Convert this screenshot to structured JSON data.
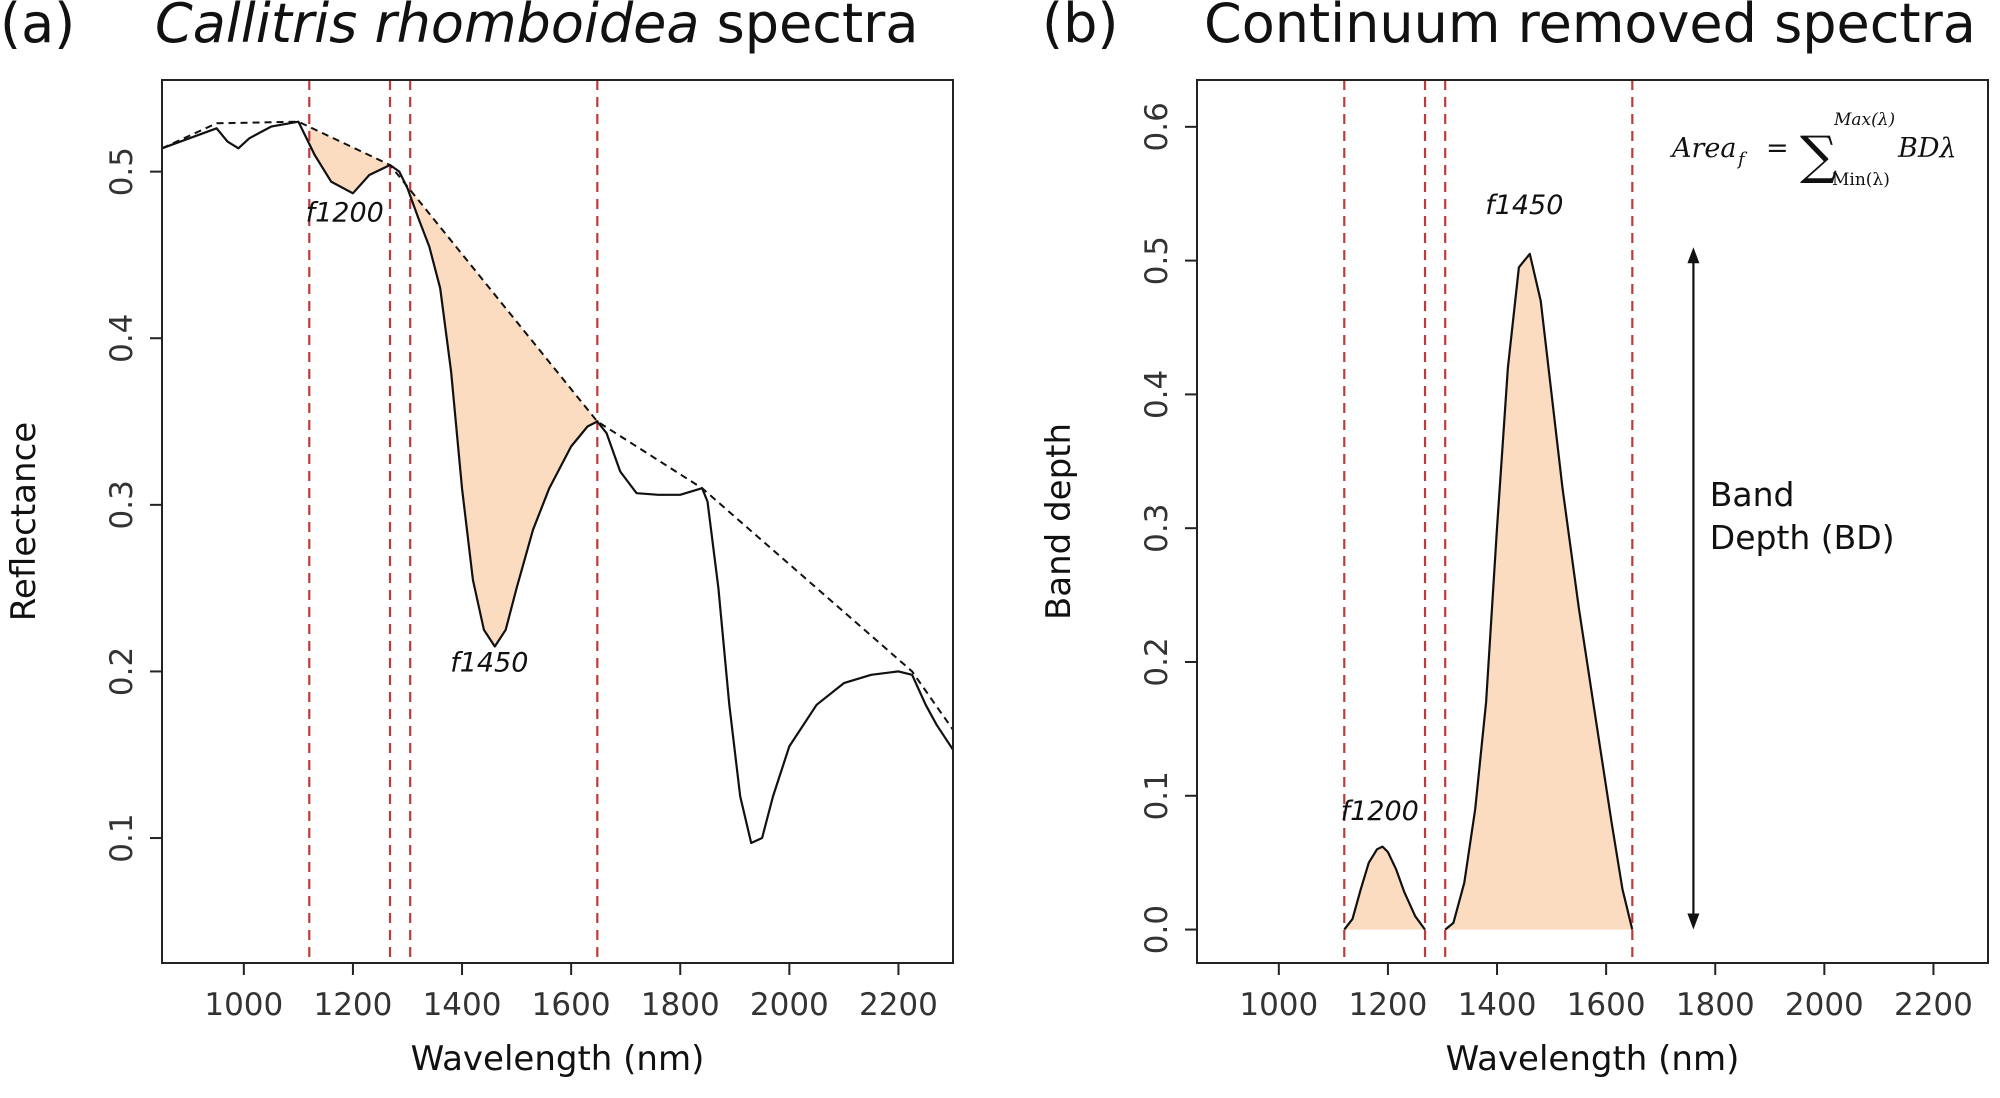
{
  "colors": {
    "fill": "#fcdcc0",
    "line": "#111111",
    "vline": "#c0393b",
    "box": "#222222"
  },
  "chart_data": [
    {
      "panel": "(a)",
      "type": "line",
      "title_italic": "Callitris rhomboidea",
      "title_rest": " spectra",
      "xlabel": "Wavelength (nm)",
      "ylabel": "Reflectance",
      "xlim": [
        850,
        2300
      ],
      "ylim": [
        0.025,
        0.555
      ],
      "xticks": [
        1000,
        1200,
        1400,
        1600,
        1800,
        2000,
        2200
      ],
      "yticks": [
        0.1,
        0.2,
        0.3,
        0.4,
        0.5
      ],
      "ytick_labels": [
        "0.1",
        "0.2",
        "0.3",
        "0.4",
        "0.5"
      ],
      "vlines": [
        1120,
        1268,
        1305,
        1648
      ],
      "series": [
        {
          "style": "solid",
          "x": [
            850,
            900,
            950,
            970,
            990,
            1010,
            1050,
            1100,
            1130,
            1160,
            1200,
            1230,
            1268,
            1285,
            1300,
            1320,
            1340,
            1360,
            1380,
            1400,
            1420,
            1440,
            1460,
            1480,
            1500,
            1530,
            1560,
            1600,
            1630,
            1648,
            1665,
            1690,
            1720,
            1760,
            1800,
            1840,
            1850,
            1870,
            1890,
            1910,
            1930,
            1950,
            1970,
            2000,
            2050,
            2100,
            2150,
            2200,
            2225,
            2250,
            2270,
            2300
          ],
          "y": [
            0.514,
            0.52,
            0.526,
            0.518,
            0.514,
            0.52,
            0.527,
            0.53,
            0.51,
            0.494,
            0.487,
            0.498,
            0.504,
            0.5,
            0.49,
            0.472,
            0.455,
            0.43,
            0.38,
            0.31,
            0.255,
            0.225,
            0.215,
            0.225,
            0.25,
            0.285,
            0.31,
            0.335,
            0.347,
            0.35,
            0.343,
            0.32,
            0.307,
            0.306,
            0.306,
            0.31,
            0.302,
            0.25,
            0.18,
            0.125,
            0.097,
            0.1,
            0.125,
            0.155,
            0.18,
            0.193,
            0.198,
            0.2,
            0.198,
            0.18,
            0.168,
            0.153
          ]
        },
        {
          "style": "dashed",
          "x": [
            850,
            950,
            1100,
            1268,
            1648,
            1840,
            2225,
            2300
          ],
          "y": [
            0.514,
            0.529,
            0.53,
            0.504,
            0.35,
            0.31,
            0.2,
            0.165
          ]
        }
      ],
      "filled_features": [
        {
          "label": "f1200",
          "x_range": [
            1120,
            1268
          ],
          "label_pos": [
            1185,
            0.47
          ]
        },
        {
          "label": "f1450",
          "x_range": [
            1305,
            1648
          ],
          "label_pos": [
            1450,
            0.2
          ]
        }
      ]
    },
    {
      "panel": "(b)",
      "type": "area",
      "title": "Continuum removed spectra",
      "xlabel": "Wavelength (nm)",
      "ylabel": "Band depth",
      "xlim": [
        850,
        2300
      ],
      "ylim": [
        -0.025,
        0.635
      ],
      "xticks": [
        1000,
        1200,
        1400,
        1600,
        1800,
        2000,
        2200
      ],
      "yticks": [
        0.0,
        0.1,
        0.2,
        0.3,
        0.4,
        0.5,
        0.6
      ],
      "ytick_labels": [
        "0.0",
        "0.1",
        "0.2",
        "0.3",
        "0.4",
        "0.5",
        "0.6"
      ],
      "vlines": [
        1120,
        1268,
        1305,
        1648
      ],
      "series": [
        {
          "name": "f1200",
          "x": [
            1120,
            1135,
            1150,
            1165,
            1180,
            1190,
            1200,
            1215,
            1230,
            1250,
            1268
          ],
          "y": [
            0.0,
            0.008,
            0.03,
            0.05,
            0.06,
            0.062,
            0.058,
            0.045,
            0.028,
            0.01,
            0.0
          ]
        },
        {
          "name": "f1450",
          "x": [
            1305,
            1320,
            1340,
            1360,
            1380,
            1400,
            1420,
            1440,
            1460,
            1480,
            1500,
            1520,
            1550,
            1580,
            1610,
            1630,
            1648
          ],
          "y": [
            0.0,
            0.005,
            0.035,
            0.09,
            0.17,
            0.3,
            0.42,
            0.495,
            0.505,
            0.47,
            0.4,
            0.33,
            0.24,
            0.16,
            0.08,
            0.03,
            0.0
          ]
        }
      ],
      "feature_labels": [
        {
          "label": "f1200",
          "pos": [
            1185,
            0.082
          ]
        },
        {
          "label": "f1450",
          "pos": [
            1450,
            0.535
          ]
        }
      ],
      "arrow": {
        "x": 1760,
        "y_from": 0.0,
        "y_to": 0.51
      },
      "annotation": {
        "lines": [
          "Band",
          "Depth (BD)"
        ],
        "pos": [
          1790,
          0.3
        ]
      },
      "formula": {
        "lhs": "Area",
        "lhs_sub": "f",
        "eq": "=",
        "sum": "∑",
        "upper": "Max(λ)",
        "lower": "Min(λ)",
        "body": "BDλ"
      }
    }
  ]
}
